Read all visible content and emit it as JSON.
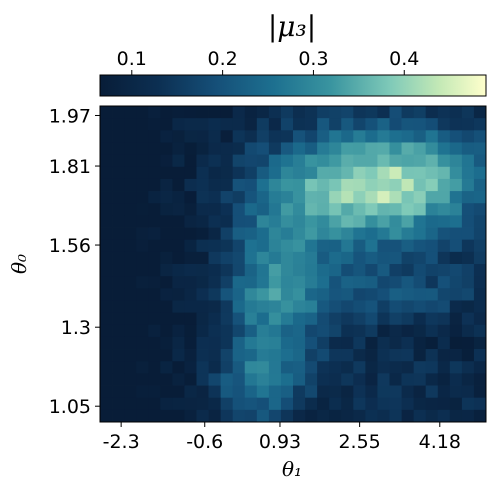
{
  "chart_data": {
    "type": "heatmap",
    "colorbar": {
      "label": "|μ₃|",
      "range": [
        0.065,
        0.49
      ],
      "ticks": [
        0.1,
        0.2,
        0.3,
        0.4
      ],
      "tick_labels": [
        "0.1",
        "0.2",
        "0.3",
        "0.4"
      ],
      "colormap": "YlGnBu_r",
      "placement": "top"
    },
    "xlabel": "θ₁",
    "ylabel": "θ₀",
    "x_range": [
      -2.73,
      5.12
    ],
    "y_range": [
      1.0,
      2.0
    ],
    "x_ticks": [
      -2.3,
      -0.6,
      0.93,
      2.55,
      4.18
    ],
    "x_tick_labels": [
      "-2.3",
      "-0.6",
      "0.93",
      "2.55",
      "4.18"
    ],
    "y_ticks": [
      1.05,
      1.3,
      1.56,
      1.81,
      1.97
    ],
    "y_tick_labels": [
      "1.05",
      "1.3",
      "1.56",
      "1.81",
      "1.97"
    ],
    "n_cols": 32,
    "n_rows": 26,
    "grid": false
  }
}
